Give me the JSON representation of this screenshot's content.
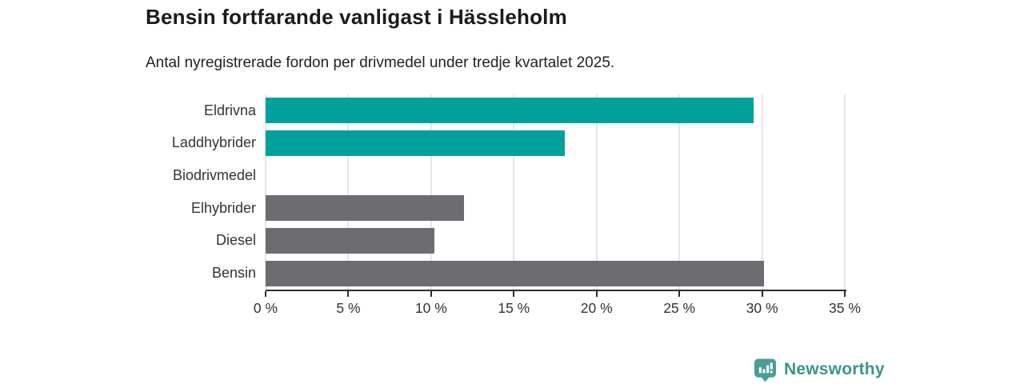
{
  "header": {
    "title": "Bensin fortfarande vanligast i Hässleholm",
    "subtitle": "Antal nyregistrerade fordon per drivmedel under tredje kvartalet 2025."
  },
  "chart_data": {
    "type": "bar",
    "orientation": "horizontal",
    "title": "Bensin fortfarande vanligast i Hässleholm",
    "subtitle": "Antal nyregistrerade fordon per drivmedel under tredje kvartalet 2025.",
    "categories": [
      "Eldrivna",
      "Laddhybrider",
      "Biodrivmedel",
      "Elhybrider",
      "Diesel",
      "Bensin"
    ],
    "values": [
      29.5,
      18.1,
      0,
      12.0,
      10.2,
      30.1
    ],
    "bar_colors": [
      "#00a19a",
      "#00a19a",
      "#6d6c71",
      "#6d6c71",
      "#6d6c71",
      "#6d6c71"
    ],
    "xlabel": "",
    "ylabel": "",
    "xlim": [
      0,
      35
    ],
    "xticks": [
      0,
      5,
      10,
      15,
      20,
      25,
      30,
      35
    ],
    "xtick_labels": [
      "0 %",
      "5 %",
      "10 %",
      "15 %",
      "20 %",
      "25 %",
      "30 %",
      "35 %"
    ],
    "grid": "vertical",
    "legend": "none",
    "accent_colors": {
      "teal": "#00a19a",
      "gray": "#6d6c71",
      "gridline": "#e6e6e6",
      "axis": "#2d2d2d"
    }
  },
  "branding": {
    "logo_text": "Newsworthy",
    "logo_text_color": "#3c938d",
    "logo_icon": "bar-chart-speech-bubble-icon",
    "logo_icon_color": "#4a9d97"
  }
}
